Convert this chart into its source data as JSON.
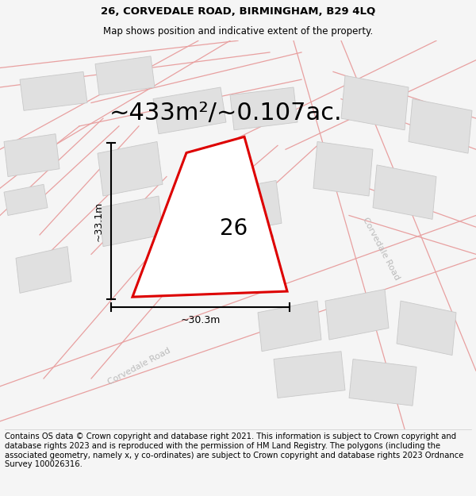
{
  "title_line1": "26, CORVEDALE ROAD, BIRMINGHAM, B29 4LQ",
  "title_line2": "Map shows position and indicative extent of the property.",
  "area_text": "~433m²/~0.107ac.",
  "property_number": "26",
  "width_label": "~30.3m",
  "height_label": "~33.1m",
  "footer_text": "Contains OS data © Crown copyright and database right 2021. This information is subject to Crown copyright and database rights 2023 and is reproduced with the permission of HM Land Registry. The polygons (including the associated geometry, namely x, y co-ordinates) are subject to Crown copyright and database rights 2023 Ordnance Survey 100026316.",
  "bg_color": "#f5f5f5",
  "map_bg": "#ffffff",
  "road_stroke": "#e8a0a0",
  "building_fill": "#e0e0e0",
  "building_stroke": "#c8c8c8",
  "property_fill": "#ffffff",
  "property_stroke": "#dd0000",
  "title_fontsize": 9.5,
  "subtitle_fontsize": 8.5,
  "area_fontsize": 22,
  "label_fontsize": 9,
  "number_fontsize": 20,
  "footer_fontsize": 7.2,
  "corvedale_road_color": "#bbbbbb"
}
